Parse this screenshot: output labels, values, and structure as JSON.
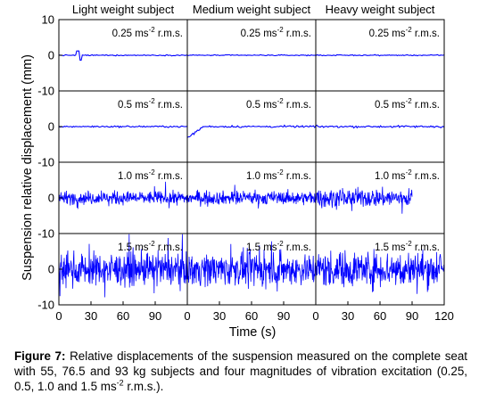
{
  "chart_data": {
    "type": "line",
    "column_titles": [
      "Light weight subject",
      "Medium weight subject",
      "Heavy weight subject"
    ],
    "row_labels": [
      {
        "main": "0.25 ms",
        "exp": "-2",
        "tail": " r.m.s."
      },
      {
        "main": "0.5 ms",
        "exp": "-2",
        "tail": " r.m.s."
      },
      {
        "main": "1.0 ms",
        "exp": "-2",
        "tail": " r.m.s."
      },
      {
        "main": "1.5 ms",
        "exp": "-2",
        "tail": " r.m.s."
      }
    ],
    "ylabel": "Suspension relative displacement (mm)",
    "xlabel": "Time (s)",
    "y_ticks": [
      "10",
      "0",
      "-10",
      "0",
      "-10",
      "0",
      "-10",
      "0",
      "-10"
    ],
    "x_ticks_panel": [
      "0",
      "30",
      "60",
      "90"
    ],
    "x_ticks_last": [
      "0",
      "30",
      "60",
      "90",
      "120"
    ],
    "xlim": [
      0,
      120
    ],
    "panel_ylim": [
      -10,
      10
    ],
    "series_color": "#0000ff",
    "amplitudes_mm": [
      [
        0.1,
        0.1,
        0.1
      ],
      [
        0.15,
        0.2,
        0.2
      ],
      [
        1.3,
        1.3,
        1.8
      ],
      [
        3.2,
        3.2,
        3.6
      ]
    ],
    "durations_s": [
      [
        120,
        120,
        120
      ],
      [
        120,
        120,
        120
      ],
      [
        120,
        120,
        90
      ],
      [
        120,
        120,
        120
      ]
    ]
  },
  "caption": {
    "label": "Figure 7:",
    "text_1": " Relative displacements of the suspension measured on the complete seat with 55, 76.5 and 93 kg subjects  and four magnitudes of vibration excitation (0.25, 0.5, 1.0 and 1.5 ms",
    "exp": "-2",
    "text_2": " r.m.s.)."
  }
}
